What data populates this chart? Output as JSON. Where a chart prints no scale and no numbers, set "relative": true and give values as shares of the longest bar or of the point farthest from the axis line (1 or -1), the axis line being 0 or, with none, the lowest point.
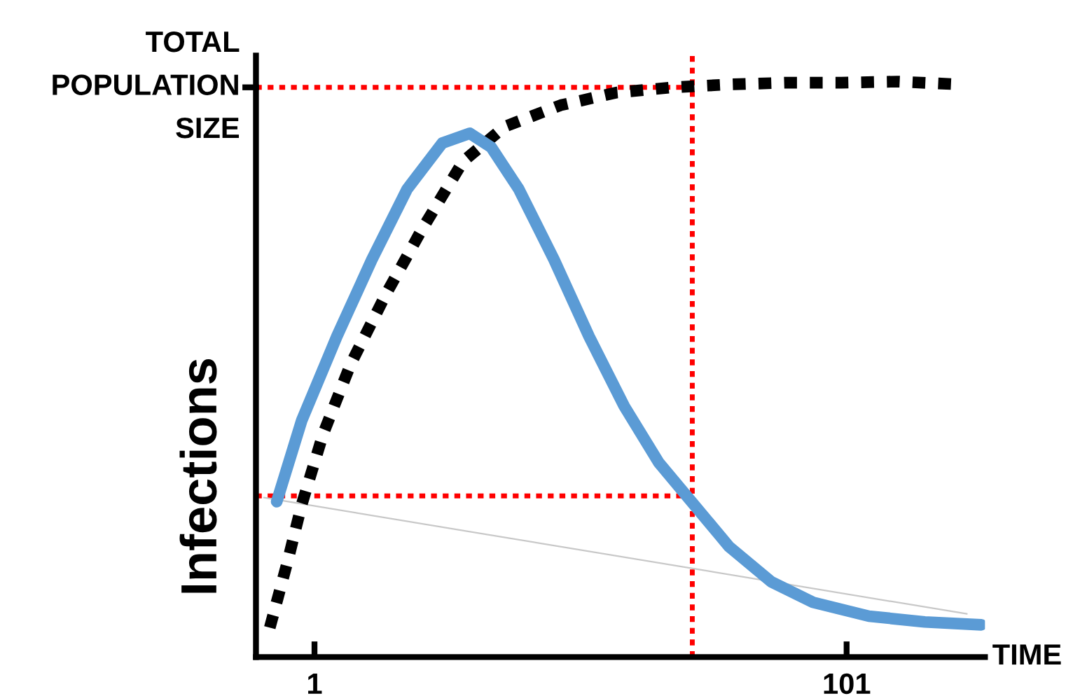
{
  "chart_data": {
    "type": "line",
    "relative": true,
    "xlabel": "TIME",
    "ylabel": "Infections",
    "xlim": [
      -10,
      127
    ],
    "xticks": [
      1,
      101
    ],
    "series": [
      {
        "color": "#000000",
        "line_style": "dotted",
        "x": [
          -7.4,
          -4.0,
          -1.4,
          2.6,
          7.8,
          14.4,
          21.0,
          28.9,
          36.8,
          47.3,
          57.8,
          68.4,
          78.9,
          89.4,
          100.0,
          110.5,
          122.3
        ],
        "values": [
          0.051,
          0.168,
          0.265,
          0.387,
          0.509,
          0.63,
          0.74,
          0.861,
          0.922,
          0.959,
          0.981,
          0.99,
          0.995,
          0.998,
          0.998,
          1.0,
          0.995
        ]
      },
      {
        "color": "#5b9bd5",
        "line_style": "solid",
        "x": [
          -6.1,
          -1.4,
          5.2,
          11.8,
          18.4,
          25.0,
          30.2,
          34.2,
          39.4,
          46.0,
          52.6,
          59.2,
          65.7,
          72.3,
          78.9,
          86.8,
          94.7,
          105.2,
          115.7,
          126.3
        ],
        "values": [
          0.27,
          0.411,
          0.557,
          0.691,
          0.813,
          0.893,
          0.91,
          0.886,
          0.813,
          0.691,
          0.557,
          0.436,
          0.338,
          0.265,
          0.192,
          0.131,
          0.095,
          0.071,
          0.061,
          0.056
        ]
      },
      {
        "color": "#c8c8c8",
        "line_style": "solid",
        "x": [
          -8.5,
          123.6
        ],
        "values": [
          0.277,
          0.075
        ]
      }
    ],
    "ref_lines": [
      {
        "axis": "y",
        "value": 0.99,
        "label": "TOTAL\nPOPULATION\nSIZE",
        "color": "#ff0000",
        "line_style": "dotted"
      },
      {
        "axis": "y",
        "value": 0.28,
        "label": null,
        "color": "#ff0000",
        "line_style": "dotted"
      },
      {
        "axis": "x",
        "value": 72,
        "label": null,
        "color": "#ff0000",
        "line_style": "dotted"
      }
    ]
  }
}
